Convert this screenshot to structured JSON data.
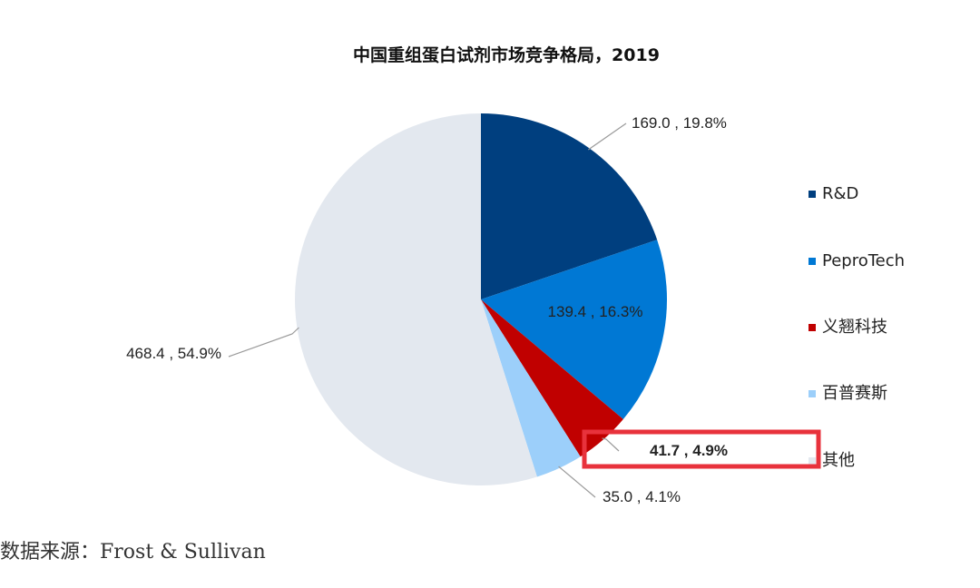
{
  "chart_data": {
    "type": "pie",
    "title": "中国重组蛋白试剂市场竞争格局，2019",
    "slices": [
      {
        "name": "R&D",
        "value": 169.0,
        "percent": 19.8,
        "label": "169.0 , 19.8%",
        "color": "#003f7f"
      },
      {
        "name": "PeproTech",
        "value": 139.4,
        "percent": 16.3,
        "label": "139.4 , 16.3%",
        "color": "#0078d4"
      },
      {
        "name": "义翘科技",
        "value": 41.7,
        "percent": 4.9,
        "label": "41.7 , 4.9%",
        "color": "#c00000"
      },
      {
        "name": "百普赛斯",
        "value": 35.0,
        "percent": 4.1,
        "label": "35.0 , 4.1%",
        "color": "#9ccffa"
      },
      {
        "name": "其他",
        "value": 468.4,
        "percent": 54.9,
        "label": "468.4 , 54.9%",
        "color": "#e3e8ef"
      }
    ],
    "legend_position": "right",
    "highlight": {
      "slice": "义翘科技",
      "color": "#e8323c"
    }
  },
  "source": "数据来源：Frost & Sullivan"
}
